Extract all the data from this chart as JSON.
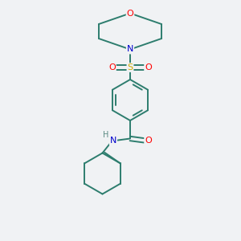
{
  "background_color": "#f0f2f4",
  "bond_color": "#2d7d6e",
  "atom_colors": {
    "O": "#ff0000",
    "N": "#0000cc",
    "S": "#ccaa00",
    "H": "#5a8a82",
    "C": "#2d7d6e"
  },
  "figsize": [
    3.0,
    3.0
  ],
  "dpi": 100
}
